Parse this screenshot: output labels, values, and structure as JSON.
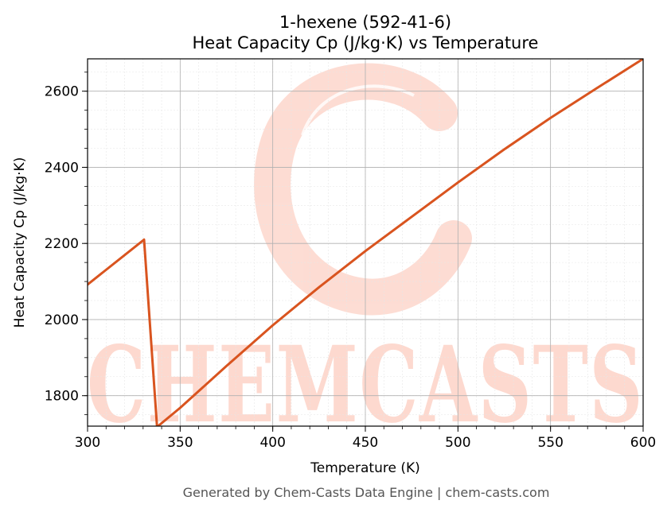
{
  "chart_data": {
    "type": "line",
    "title": "1-hexene (592-41-6)",
    "subtitle": "Heat Capacity Cp (J/kg·K) vs Temperature",
    "xlabel": "Temperature (K)",
    "ylabel": "Heat Capacity Cp (J/kg·K)",
    "xlim": [
      300,
      600
    ],
    "ylim": [
      1720,
      2685
    ],
    "xticks": [
      300,
      350,
      400,
      450,
      500,
      550,
      600
    ],
    "yticks": [
      1800,
      2000,
      2200,
      2400,
      2600
    ],
    "grid": true,
    "legend": "none",
    "line_color": "#d9541f",
    "series": [
      {
        "x": [
          300,
          330.5,
          337.5,
          350,
          375,
          400,
          425,
          450,
          475,
          500,
          525,
          550,
          575,
          600
        ],
        "values": [
          2092,
          2210,
          1718,
          1768,
          1878,
          1985,
          2085,
          2180,
          2270,
          2360,
          2447,
          2530,
          2608,
          2685
        ]
      }
    ]
  },
  "watermark": {
    "text": "CHEMCASTS",
    "color": "#fdd9cf"
  },
  "footer": "Generated by Chem-Casts Data Engine | chem-casts.com"
}
